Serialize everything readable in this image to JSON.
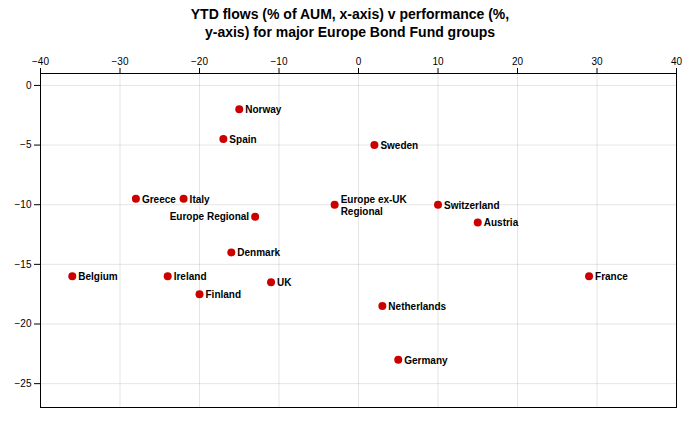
{
  "chart_data": {
    "type": "scatter",
    "title": "YTD flows (% of AUM, x-axis) v performance (%,\ny-axis) for major Europe Bond Fund groups",
    "color": "#cc0000",
    "grid": true,
    "xlim": [
      -40,
      40
    ],
    "ylim": [
      -27,
      1
    ],
    "xticks": [
      -40,
      -30,
      -20,
      -10,
      0,
      10,
      20,
      30,
      40
    ],
    "yticks": [
      0,
      -5,
      -10,
      -15,
      -20,
      -25
    ],
    "points": [
      {
        "label": "Norway",
        "x": -15,
        "y": -2.0
      },
      {
        "label": "Spain",
        "x": -17,
        "y": -4.5
      },
      {
        "label": "Sweden",
        "x": 2,
        "y": -5.0
      },
      {
        "label": "Greece",
        "x": -28,
        "y": -9.5
      },
      {
        "label": "Italy",
        "x": -22,
        "y": -9.5
      },
      {
        "label": "Europe ex-UK\nRegional",
        "x": -3,
        "y": -10.0
      },
      {
        "label": "Europe Regional",
        "x": -13,
        "y": -11.0
      },
      {
        "label": "Switzerland",
        "x": 10,
        "y": -10.0
      },
      {
        "label": "Austria",
        "x": 15,
        "y": -11.5
      },
      {
        "label": "Belgium",
        "x": -36,
        "y": -16.0
      },
      {
        "label": "Ireland",
        "x": -24,
        "y": -16.0
      },
      {
        "label": "Denmark",
        "x": -16,
        "y": -14.0
      },
      {
        "label": "Finland",
        "x": -20,
        "y": -17.5
      },
      {
        "label": "UK",
        "x": -11,
        "y": -16.5
      },
      {
        "label": "Netherlands",
        "x": 3,
        "y": -18.5
      },
      {
        "label": "France",
        "x": 29,
        "y": -16.0
      },
      {
        "label": "Germany",
        "x": 5,
        "y": -23.0
      }
    ]
  }
}
